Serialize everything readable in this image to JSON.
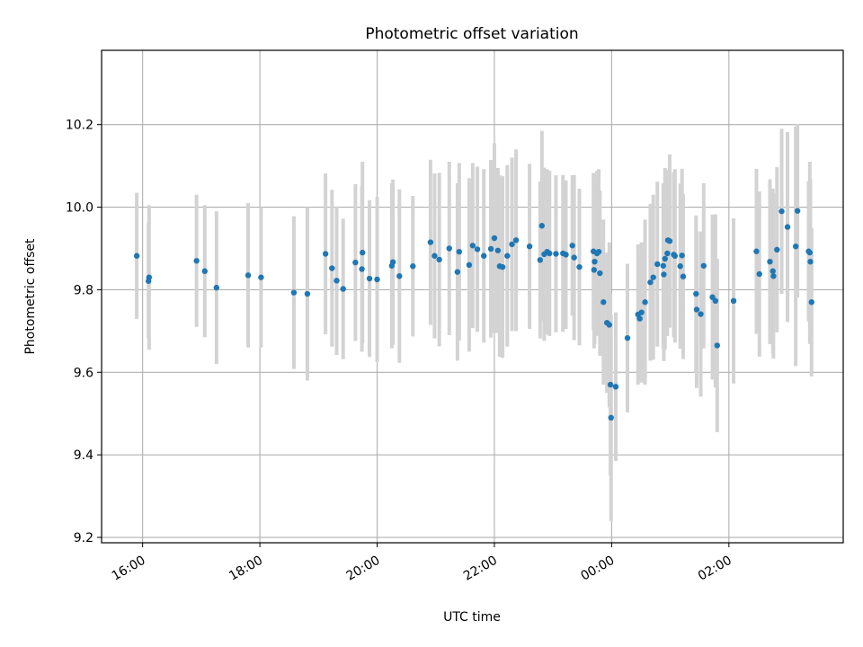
{
  "chart_data": {
    "type": "scatter",
    "title": "Photometric offset variation",
    "xlabel": "UTC time",
    "ylabel": "Photometric offset",
    "x_ticks": [
      {
        "value": 16,
        "label": "16:00"
      },
      {
        "value": 18,
        "label": "18:00"
      },
      {
        "value": 20,
        "label": "20:00"
      },
      {
        "value": 22,
        "label": "22:00"
      },
      {
        "value": 24,
        "label": "00:00"
      },
      {
        "value": 26,
        "label": "02:00"
      }
    ],
    "y_ticks": [
      9.2,
      9.4,
      9.6,
      9.8,
      10.0,
      10.2
    ],
    "xlim": [
      15.3,
      27.95
    ],
    "ylim": [
      9.187,
      10.38
    ],
    "grid": true,
    "marker_color": "#1f77b4",
    "errorbar_color": "#d3d3d3",
    "series": [
      {
        "points": [
          [
            15.9,
            9.882,
            0.153
          ],
          [
            16.1,
            9.821,
            0.14
          ],
          [
            16.11,
            9.83,
            0.175
          ],
          [
            16.92,
            9.87,
            0.16
          ],
          [
            17.06,
            9.845,
            0.16
          ],
          [
            17.26,
            9.805,
            0.185
          ],
          [
            17.8,
            9.835,
            0.175
          ],
          [
            18.02,
            9.83,
            0.17
          ],
          [
            18.58,
            9.793,
            0.185
          ],
          [
            18.81,
            9.79,
            0.21
          ],
          [
            19.12,
            9.887,
            0.195
          ],
          [
            19.23,
            9.852,
            0.19
          ],
          [
            19.31,
            9.822,
            0.18
          ],
          [
            19.42,
            9.802,
            0.17
          ],
          [
            19.63,
            9.866,
            0.19
          ],
          [
            19.74,
            9.85,
            0.2
          ],
          [
            19.75,
            9.89,
            0.22
          ],
          [
            19.87,
            9.827,
            0.19
          ],
          [
            20.0,
            9.825,
            0.2
          ],
          [
            20.25,
            9.858,
            0.2
          ],
          [
            20.27,
            9.867,
            0.2
          ],
          [
            20.38,
            9.833,
            0.21
          ],
          [
            20.61,
            9.857,
            0.17
          ],
          [
            20.91,
            9.915,
            0.2
          ],
          [
            20.98,
            9.882,
            0.2
          ],
          [
            21.06,
            9.873,
            0.21
          ],
          [
            21.23,
            9.9,
            0.21
          ],
          [
            21.37,
            9.843,
            0.215
          ],
          [
            21.4,
            9.892,
            0.215
          ],
          [
            21.57,
            9.86,
            0.21
          ],
          [
            21.63,
            9.907,
            0.2
          ],
          [
            21.71,
            9.898,
            0.2
          ],
          [
            21.82,
            9.882,
            0.21
          ],
          [
            21.94,
            9.899,
            0.215
          ],
          [
            22.0,
            9.925,
            0.23
          ],
          [
            22.06,
            9.895,
            0.2
          ],
          [
            22.09,
            9.857,
            0.22
          ],
          [
            22.14,
            9.855,
            0.22
          ],
          [
            22.22,
            9.882,
            0.22
          ],
          [
            22.3,
            9.91,
            0.21
          ],
          [
            22.37,
            9.92,
            0.22
          ],
          [
            22.6,
            9.905,
            0.2
          ],
          [
            22.78,
            9.872,
            0.19
          ],
          [
            22.81,
            9.955,
            0.23
          ],
          [
            22.85,
            9.886,
            0.21
          ],
          [
            22.9,
            9.892,
            0.2
          ],
          [
            22.94,
            9.888,
            0.2
          ],
          [
            23.05,
            9.887,
            0.19
          ],
          [
            23.17,
            9.888,
            0.19
          ],
          [
            23.22,
            9.885,
            0.18
          ],
          [
            23.33,
            9.907,
            0.17
          ],
          [
            23.36,
            9.878,
            0.2
          ],
          [
            23.45,
            9.855,
            0.19
          ],
          [
            23.69,
            9.893,
            0.19
          ],
          [
            23.7,
            9.848,
            0.19
          ],
          [
            23.71,
            9.868,
            0.2
          ],
          [
            23.75,
            9.888,
            0.2
          ],
          [
            23.78,
            9.892,
            0.2
          ],
          [
            23.8,
            9.84,
            0.2
          ],
          [
            23.86,
            9.77,
            0.2
          ],
          [
            23.92,
            9.72,
            0.17
          ],
          [
            23.96,
            9.715,
            0.2
          ],
          [
            23.98,
            9.57,
            0.22
          ],
          [
            23.99,
            9.49,
            0.25
          ],
          [
            24.07,
            9.565,
            0.18
          ],
          [
            24.27,
            9.683,
            0.18
          ],
          [
            24.45,
            9.74,
            0.17
          ],
          [
            24.48,
            9.73,
            0.15
          ],
          [
            24.51,
            9.745,
            0.17
          ],
          [
            24.57,
            9.77,
            0.2
          ],
          [
            24.66,
            9.818,
            0.19
          ],
          [
            24.71,
            9.83,
            0.2
          ],
          [
            24.78,
            9.862,
            0.2
          ],
          [
            24.88,
            9.858,
            0.2
          ],
          [
            24.89,
            9.837,
            0.21
          ],
          [
            24.91,
            9.875,
            0.22
          ],
          [
            24.95,
            9.888,
            0.2
          ],
          [
            24.96,
            9.92,
            0.17
          ],
          [
            24.99,
            9.918,
            0.21
          ],
          [
            25.06,
            9.885,
            0.2
          ],
          [
            25.08,
            9.882,
            0.21
          ],
          [
            25.17,
            9.857,
            0.2
          ],
          [
            25.2,
            9.883,
            0.21
          ],
          [
            25.22,
            9.832,
            0.2
          ],
          [
            25.44,
            9.79,
            0.19
          ],
          [
            25.45,
            9.752,
            0.19
          ],
          [
            25.52,
            9.741,
            0.2
          ],
          [
            25.57,
            9.858,
            0.2
          ],
          [
            25.72,
            9.782,
            0.2
          ],
          [
            25.77,
            9.773,
            0.21
          ],
          [
            25.8,
            9.665,
            0.21
          ],
          [
            26.08,
            9.773,
            0.2
          ],
          [
            26.47,
            9.893,
            0.2
          ],
          [
            26.52,
            9.838,
            0.2
          ],
          [
            26.7,
            9.868,
            0.2
          ],
          [
            26.75,
            9.845,
            0.2
          ],
          [
            26.76,
            9.833,
            0.2
          ],
          [
            26.82,
            9.897,
            0.2
          ],
          [
            26.9,
            9.99,
            0.2
          ],
          [
            27.0,
            9.952,
            0.23
          ],
          [
            27.14,
            9.905,
            0.29
          ],
          [
            27.17,
            9.991,
            0.21
          ],
          [
            27.36,
            9.893,
            0.17
          ],
          [
            27.38,
            9.89,
            0.22
          ],
          [
            27.39,
            9.868,
            0.2
          ],
          [
            27.41,
            9.77,
            0.18
          ]
        ]
      }
    ]
  }
}
